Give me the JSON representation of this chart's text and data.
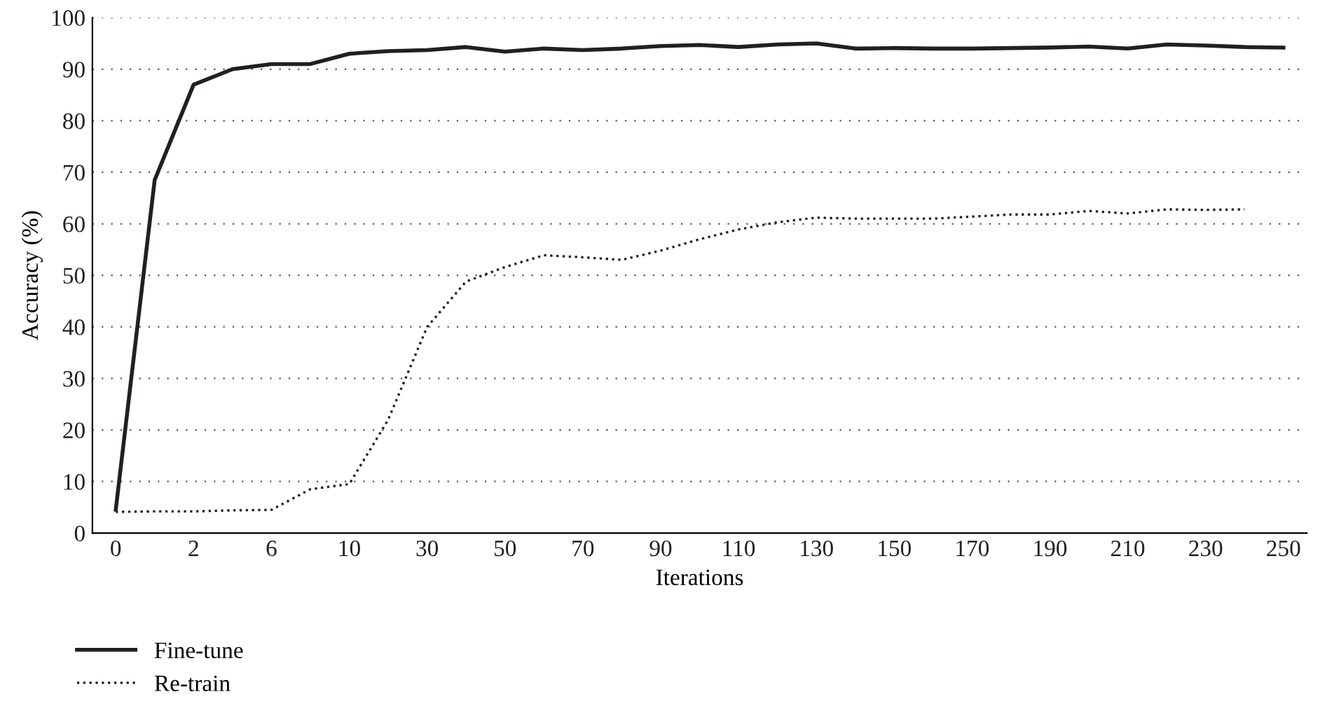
{
  "chart_data": {
    "type": "line",
    "xlabel": "Iterations",
    "ylabel": "Accuracy (%)",
    "categories": [
      "0",
      null,
      "2",
      null,
      "6",
      null,
      "10",
      null,
      "30",
      null,
      "50",
      null,
      "70",
      null,
      "90",
      null,
      "110",
      null,
      "130",
      null,
      "150",
      null,
      "170",
      null,
      "190",
      null,
      "210",
      null,
      "230",
      null,
      "250"
    ],
    "series": [
      {
        "name": "Fine-tune",
        "color": "#231f20",
        "line_style": "solid",
        "values": [
          4.5,
          68.5,
          87,
          90,
          91,
          91,
          93,
          93.5,
          93.7,
          94.3,
          93.4,
          94,
          93.7,
          94,
          94.5,
          94.7,
          94.3,
          94.8,
          95,
          94,
          94.1,
          94,
          94,
          94.1,
          94.2,
          94.4,
          94,
          94.8,
          94.6,
          94.3,
          94.2
        ]
      },
      {
        "name": "Re-train",
        "color": "#231f20",
        "line_style": "dotted",
        "values": [
          4.1,
          4.2,
          4.2,
          4.4,
          4.5,
          8.5,
          9.5,
          22,
          40,
          48.8,
          51.6,
          53.9,
          53.5,
          53,
          54.8,
          57,
          58.9,
          60.3,
          61.2,
          61,
          61,
          61,
          61.4,
          61.8,
          61.8,
          62.5,
          62,
          62.8,
          62.7,
          62.8,
          null
        ]
      }
    ],
    "ylim": [
      0,
      100
    ],
    "yticks": [
      0,
      10,
      20,
      30,
      40,
      50,
      60,
      70,
      80,
      90,
      100
    ],
    "grid": "y",
    "legend": "bottom left"
  }
}
